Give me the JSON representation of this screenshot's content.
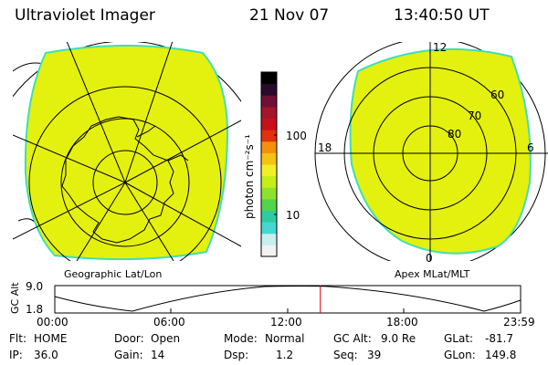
{
  "header": {
    "title": "Ultraviolet Imager",
    "date": "21 Nov 07",
    "time": "13:40:50 UT"
  },
  "left_map": {
    "label": "Geographic Lat/Lon",
    "fill_color": "#e4f00e",
    "edge_color": "#3ddfb8"
  },
  "right_map": {
    "label": "Apex MLat/MLT",
    "mlt_labels": [
      "12",
      "18",
      "6",
      "0"
    ],
    "mlat_labels": [
      "60",
      "70",
      "80"
    ]
  },
  "colorbar": {
    "unit": "photon cm⁻²s⁻¹",
    "tick_labels": [
      "100",
      "10"
    ],
    "colors": [
      "#f2f2f2",
      "#c9eef0",
      "#43d9d2",
      "#2ecba0",
      "#53d44a",
      "#8ee22e",
      "#c5ee18",
      "#f0ef2a",
      "#f6c214",
      "#f4900c",
      "#e3300d",
      "#c8101a",
      "#a3162c",
      "#6e1136",
      "#2a0b2b",
      "#000000"
    ]
  },
  "altitude_plot": {
    "y_label": "GC Alt",
    "y_ticks": [
      "9.0",
      "1.8"
    ],
    "x_ticks": [
      "00:00",
      "06:00",
      "12:00",
      "18:00",
      "23:59"
    ],
    "marker_time_hours": 13.68,
    "marker_color": "#e00000"
  },
  "status": {
    "flt_label": "Flt:",
    "flt": "HOME",
    "ip_label": "IP:",
    "ip": "36.0",
    "door_label": "Door:",
    "door": "Open",
    "gain_label": "Gain:",
    "gain": "14",
    "mode_label": "Mode:",
    "mode": "Normal",
    "dsp_label": "Dsp:",
    "dsp": "1.2",
    "gcalt_label": "GC Alt:",
    "gcalt": "9.0 Re",
    "seq_label": "Seq:",
    "seq": "39",
    "glat_label": "GLat:",
    "glat": "-81.7",
    "glon_label": "GLon:",
    "glon": "149.8"
  }
}
